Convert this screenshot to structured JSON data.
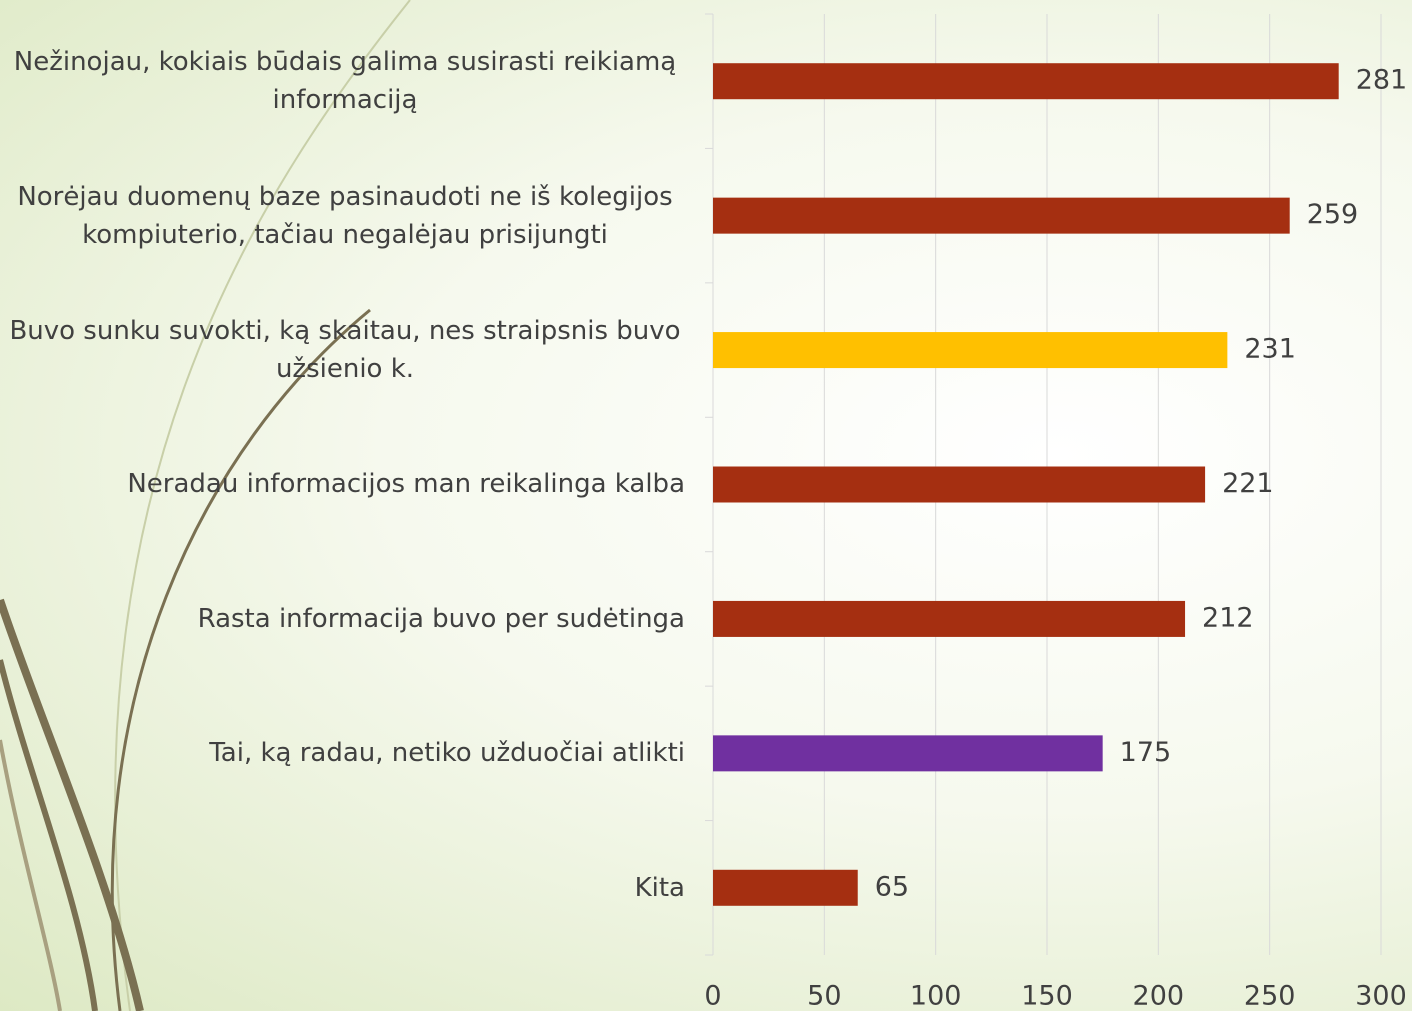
{
  "chart_data": {
    "type": "barh",
    "categories": [
      "Nežinojau, kokiais būdais galima susirasti reikiamą informaciją",
      "Norėjau duomenų baze pasinaudoti ne iš kolegijos kompiuterio, tačiau negalėjau prisijungti",
      "Buvo sunku suvokti, ką skaitau, nes straipsnis buvo užsienio k.",
      "Neradau informacijos man reikalinga kalba",
      "Rasta informacija buvo per sudėtinga",
      "Tai, ką radau, netiko užduočiai atlikti",
      "Kita"
    ],
    "values": [
      281,
      259,
      231,
      221,
      212,
      175,
      65
    ],
    "colors": [
      "#a52f11",
      "#a52f11",
      "#ffc000",
      "#a52f11",
      "#a52f11",
      "#7030a0",
      "#a52f11"
    ],
    "xlim": [
      0,
      300
    ],
    "xticks": [
      0,
      50,
      100,
      150,
      200,
      250,
      300
    ],
    "grid": true
  }
}
